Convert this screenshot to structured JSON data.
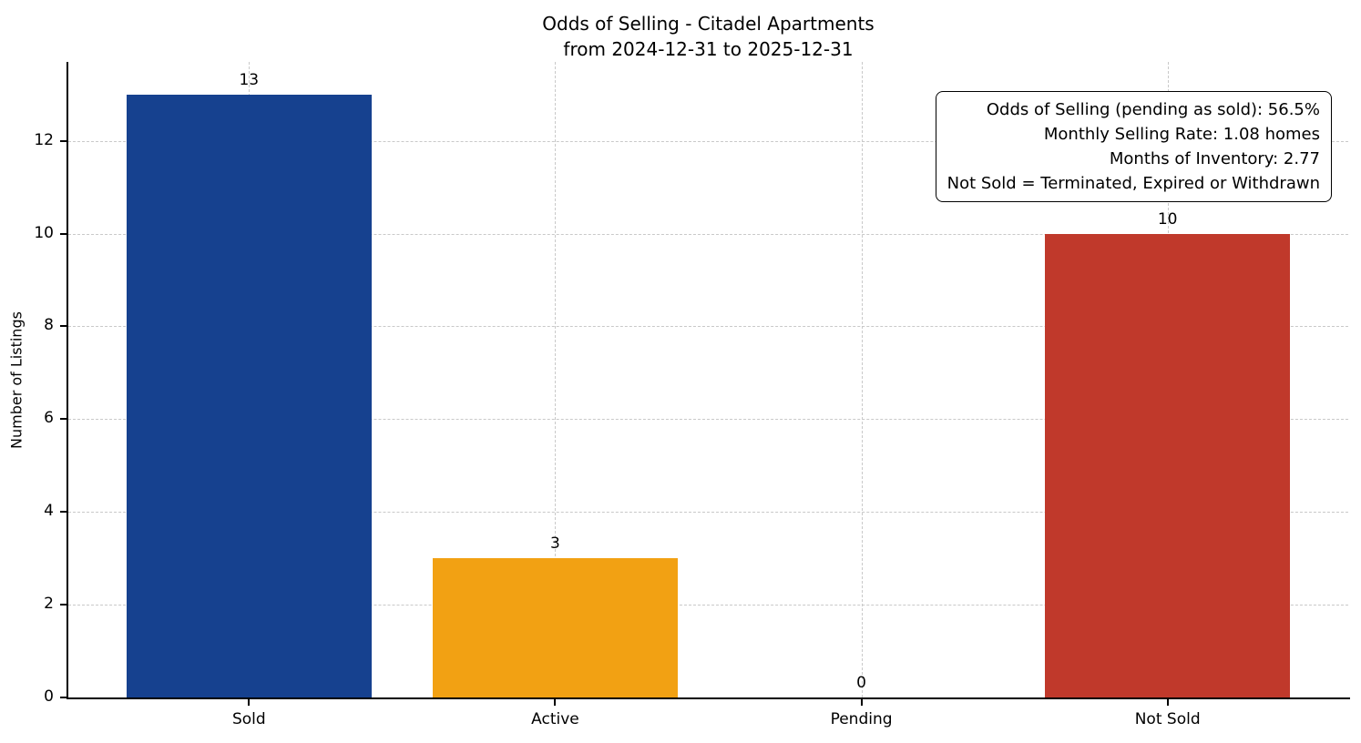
{
  "chart_data": {
    "type": "bar",
    "title": "Odds of Selling - Citadel Apartments",
    "subtitle": "from 2024-12-31 to 2025-12-31",
    "xlabel": "",
    "ylabel": "Number of Listings",
    "categories": [
      "Sold",
      "Active",
      "Pending",
      "Not Sold"
    ],
    "values": [
      13,
      3,
      0,
      10
    ],
    "bar_colors": [
      "#16418f",
      "#f2a113",
      "#999999",
      "#c0392b"
    ],
    "yticks": [
      0,
      2,
      4,
      6,
      8,
      10,
      12
    ],
    "ylim": [
      0,
      13.7
    ],
    "grid": true,
    "grid_style": "dashed",
    "legend": "none",
    "annotation_box": {
      "position": "top-right",
      "lines": [
        "Odds of Selling (pending as sold): 56.5%",
        "Monthly Selling Rate: 1.08 homes",
        "Months of Inventory: 2.77",
        "Not Sold = Terminated, Expired or Withdrawn"
      ]
    }
  }
}
